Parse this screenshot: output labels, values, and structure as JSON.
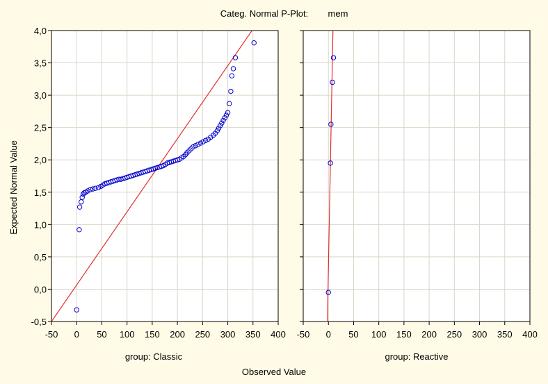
{
  "chart_data": {
    "type": "scatter",
    "title": "Categ. Normal P-Plot:",
    "variable": "mem",
    "xlabel": "Observed Value",
    "ylabel": "Expected Normal Value",
    "xlim": [
      -50,
      400
    ],
    "ylim": [
      -0.5,
      4.0
    ],
    "x_ticks": [
      "-50",
      "0",
      "50",
      "100",
      "150",
      "200",
      "250",
      "300",
      "350",
      "400"
    ],
    "y_ticks": [
      "-0,5",
      "0,0",
      "0,5",
      "1,0",
      "1,5",
      "2,0",
      "2,5",
      "3,0",
      "3,5",
      "4,0"
    ],
    "grid": true,
    "marker_color": "#0000cc",
    "line_color": "#e03030",
    "panels": [
      {
        "label": "group: Classic",
        "fit_line": [
          [
            -50,
            -0.5
          ],
          [
            348,
            4.0
          ]
        ],
        "points": [
          [
            0,
            -0.32
          ],
          [
            5,
            0.92
          ],
          [
            6,
            1.27
          ],
          [
            9,
            1.35
          ],
          [
            11,
            1.42
          ],
          [
            13,
            1.47
          ],
          [
            15,
            1.49
          ],
          [
            18,
            1.5
          ],
          [
            22,
            1.52
          ],
          [
            27,
            1.54
          ],
          [
            32,
            1.55
          ],
          [
            37,
            1.56
          ],
          [
            43,
            1.57
          ],
          [
            48,
            1.59
          ],
          [
            52,
            1.61
          ],
          [
            56,
            1.63
          ],
          [
            60,
            1.64
          ],
          [
            64,
            1.65
          ],
          [
            68,
            1.66
          ],
          [
            72,
            1.67
          ],
          [
            76,
            1.68
          ],
          [
            80,
            1.69
          ],
          [
            84,
            1.7
          ],
          [
            88,
            1.7
          ],
          [
            92,
            1.71
          ],
          [
            96,
            1.72
          ],
          [
            100,
            1.73
          ],
          [
            104,
            1.74
          ],
          [
            108,
            1.75
          ],
          [
            112,
            1.76
          ],
          [
            116,
            1.77
          ],
          [
            120,
            1.78
          ],
          [
            124,
            1.79
          ],
          [
            128,
            1.8
          ],
          [
            132,
            1.81
          ],
          [
            136,
            1.82
          ],
          [
            140,
            1.83
          ],
          [
            144,
            1.84
          ],
          [
            148,
            1.85
          ],
          [
            152,
            1.86
          ],
          [
            156,
            1.87
          ],
          [
            160,
            1.88
          ],
          [
            164,
            1.89
          ],
          [
            168,
            1.9
          ],
          [
            172,
            1.91
          ],
          [
            176,
            1.93
          ],
          [
            180,
            1.95
          ],
          [
            184,
            1.96
          ],
          [
            188,
            1.97
          ],
          [
            192,
            1.98
          ],
          [
            196,
            1.99
          ],
          [
            200,
            2.0
          ],
          [
            204,
            2.01
          ],
          [
            208,
            2.03
          ],
          [
            212,
            2.05
          ],
          [
            216,
            2.08
          ],
          [
            219,
            2.11
          ],
          [
            223,
            2.14
          ],
          [
            227,
            2.17
          ],
          [
            231,
            2.2
          ],
          [
            236,
            2.22
          ],
          [
            241,
            2.24
          ],
          [
            246,
            2.26
          ],
          [
            251,
            2.28
          ],
          [
            256,
            2.3
          ],
          [
            261,
            2.32
          ],
          [
            266,
            2.35
          ],
          [
            271,
            2.38
          ],
          [
            275,
            2.41
          ],
          [
            279,
            2.45
          ],
          [
            282,
            2.49
          ],
          [
            285,
            2.53
          ],
          [
            288,
            2.57
          ],
          [
            291,
            2.61
          ],
          [
            294,
            2.65
          ],
          [
            297,
            2.69
          ],
          [
            300,
            2.73
          ],
          [
            303,
            2.87
          ],
          [
            306,
            3.06
          ],
          [
            308,
            3.3
          ],
          [
            311,
            3.41
          ],
          [
            315,
            3.58
          ],
          [
            352,
            3.81
          ]
        ]
      },
      {
        "label": "group: Reactive",
        "fit_line": [
          [
            -2,
            -0.5
          ],
          [
            9,
            4.0
          ]
        ],
        "points": [
          [
            0,
            -0.05
          ],
          [
            4,
            1.95
          ],
          [
            5,
            2.55
          ],
          [
            8,
            3.2
          ],
          [
            10,
            3.58
          ]
        ]
      }
    ]
  }
}
